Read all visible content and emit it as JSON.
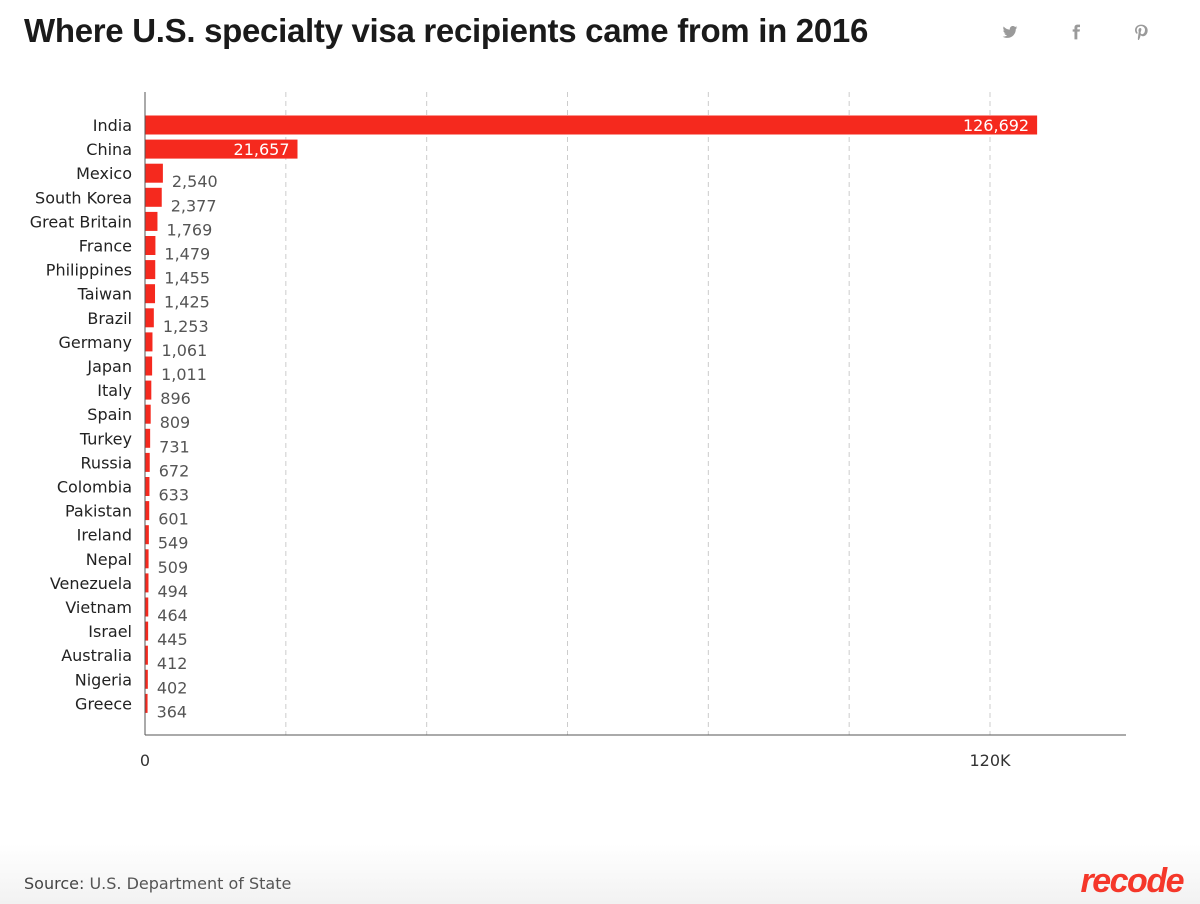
{
  "header": {
    "title": "Where U.S. specialty visa recipients came from in 2016",
    "share": [
      "twitter-icon",
      "facebook-icon",
      "pinterest-icon"
    ]
  },
  "footer": {
    "source_label": "Source:",
    "source_text": "U.S. Department of State",
    "logo": "recode"
  },
  "colors": {
    "bar": "#f5291e",
    "grid": "#cccccc",
    "axis": "#555555",
    "label": "#222222",
    "value": "#555555"
  },
  "chart_data": {
    "type": "bar",
    "orientation": "horizontal",
    "title": "Where U.S. specialty visa recipients came from in 2016",
    "categories": [
      "India",
      "China",
      "Mexico",
      "South Korea",
      "Great Britain",
      "France",
      "Philippines",
      "Taiwan",
      "Brazil",
      "Germany",
      "Japan",
      "Italy",
      "Spain",
      "Turkey",
      "Russia",
      "Colombia",
      "Pakistan",
      "Ireland",
      "Nepal",
      "Venezuela",
      "Vietnam",
      "Israel",
      "Australia",
      "Nigeria",
      "Greece"
    ],
    "values": [
      126692,
      21657,
      2540,
      2377,
      1769,
      1479,
      1455,
      1425,
      1253,
      1061,
      1011,
      896,
      809,
      731,
      672,
      633,
      601,
      549,
      509,
      494,
      464,
      445,
      412,
      402,
      364
    ],
    "value_labels": [
      "126,692",
      "21,657",
      "2,540",
      "2,377",
      "1,769",
      "1,479",
      "1,455",
      "1,425",
      "1,253",
      "1,061",
      "1,011",
      "896",
      "809",
      "731",
      "672",
      "633",
      "601",
      "549",
      "509",
      "494",
      "464",
      "445",
      "412",
      "402",
      "364"
    ],
    "xlim": [
      0,
      140000
    ],
    "ticks": [
      {
        "value": 0,
        "label": "0"
      },
      {
        "value": 120000,
        "label": "120K"
      }
    ],
    "gridlines": [
      20000,
      40000,
      60000,
      80000,
      100000,
      120000
    ],
    "grid": true,
    "xlabel": "",
    "ylabel": ""
  }
}
